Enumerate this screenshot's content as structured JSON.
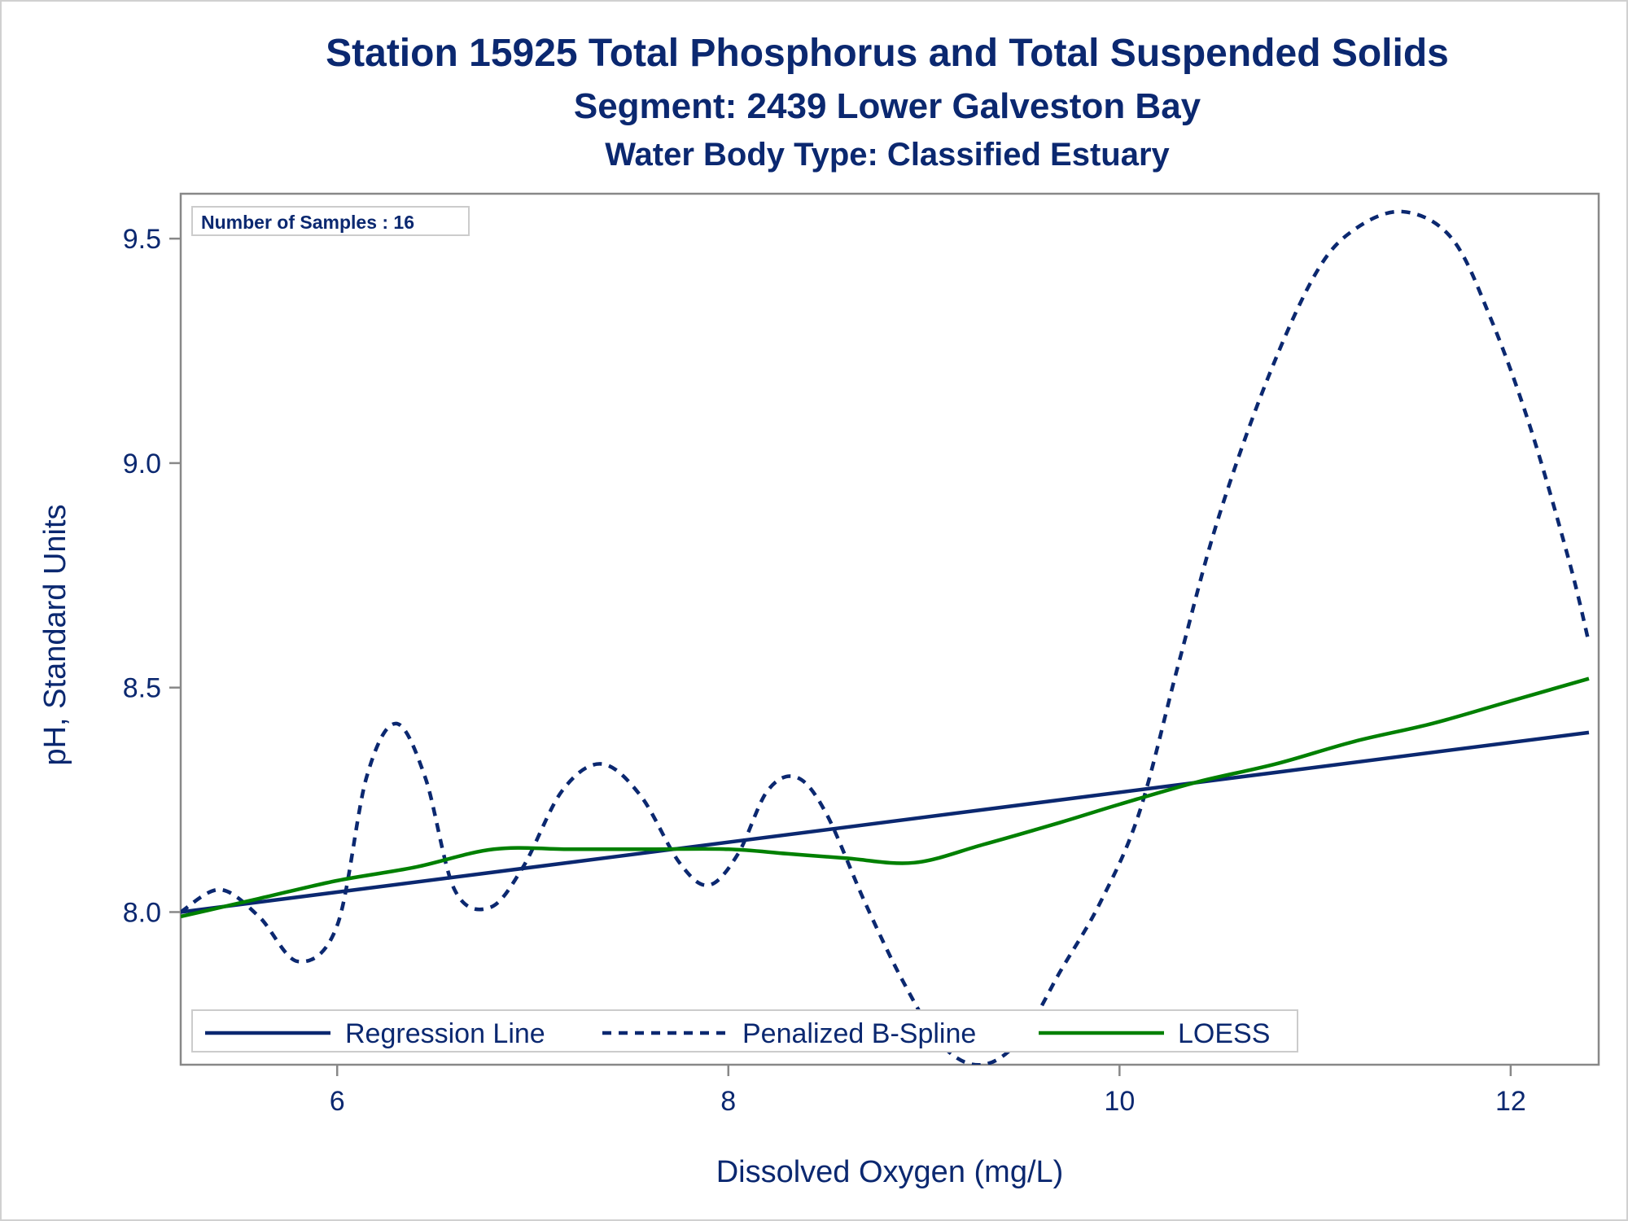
{
  "titles": {
    "line1": "Station 15925  Total Phosphorus and Total Suspended Solids",
    "line2": "Segment: 2439  Lower Galveston Bay",
    "line3": "Water Body Type: Classified Estuary"
  },
  "inset": {
    "samples_label": "Number of Samples : 16"
  },
  "colors": {
    "text": "#0b2870",
    "regression": "#0b2870",
    "spline": "#0b2870",
    "loess": "#008000",
    "axis": "#888888"
  },
  "chart_data": {
    "type": "line",
    "xlabel": "Dissolved Oxygen (mg/L)",
    "ylabel": "pH, Standard Units",
    "xlim": [
      5.2,
      12.45
    ],
    "ylim": [
      7.66,
      9.6
    ],
    "xticks": [
      6,
      8,
      10,
      12
    ],
    "xtick_labels": [
      "6",
      "8",
      "10",
      "12"
    ],
    "yticks": [
      8.0,
      8.5,
      9.0,
      9.5
    ],
    "ytick_labels": [
      "8.0",
      "8.5",
      "9.0",
      "9.5"
    ],
    "grid": false,
    "legend_placement": "bottom-left",
    "series": [
      {
        "name": "Regression Line",
        "style": "solid",
        "x": [
          5.2,
          12.4
        ],
        "y": [
          8.0,
          8.4
        ]
      },
      {
        "name": "Penalized B-Spline",
        "style": "dashed",
        "x": [
          5.2,
          5.4,
          5.6,
          5.8,
          6.0,
          6.15,
          6.3,
          6.45,
          6.6,
          6.78,
          6.95,
          7.15,
          7.35,
          7.55,
          7.75,
          7.9,
          8.05,
          8.2,
          8.35,
          8.5,
          8.7,
          8.9,
          9.1,
          9.3,
          9.5,
          9.7,
          9.9,
          10.1,
          10.3,
          10.5,
          10.75,
          11.0,
          11.2,
          11.45,
          11.7,
          11.9,
          12.1,
          12.3,
          12.4
        ],
        "y": [
          8.0,
          8.05,
          7.99,
          7.89,
          7.97,
          8.3,
          8.42,
          8.3,
          8.05,
          8.01,
          8.1,
          8.27,
          8.33,
          8.26,
          8.11,
          8.06,
          8.13,
          8.27,
          8.3,
          8.22,
          8.02,
          7.84,
          7.7,
          7.66,
          7.72,
          7.87,
          8.02,
          8.22,
          8.55,
          8.87,
          9.18,
          9.42,
          9.52,
          9.56,
          9.5,
          9.32,
          9.08,
          8.78,
          8.6
        ]
      },
      {
        "name": "LOESS",
        "style": "solid",
        "x": [
          5.2,
          5.6,
          6.0,
          6.4,
          6.8,
          7.2,
          7.6,
          8.0,
          8.3,
          8.6,
          8.95,
          9.3,
          9.7,
          10.0,
          10.4,
          10.8,
          11.2,
          11.6,
          12.0,
          12.4
        ],
        "y": [
          7.99,
          8.03,
          8.07,
          8.1,
          8.14,
          8.14,
          8.14,
          8.14,
          8.13,
          8.12,
          8.11,
          8.15,
          8.2,
          8.24,
          8.29,
          8.33,
          8.38,
          8.42,
          8.47,
          8.52
        ]
      }
    ]
  }
}
